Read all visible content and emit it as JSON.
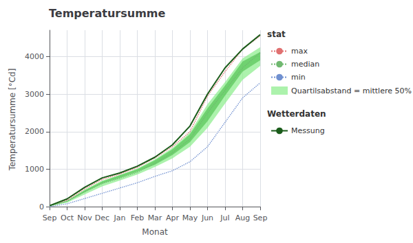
{
  "chart_data": {
    "type": "line",
    "title": "Temperatursumme",
    "xlabel": "Monat",
    "ylabel": "Temperatursumme [°Cd]",
    "categories": [
      "Sep",
      "Oct",
      "Nov",
      "Dec",
      "Jan",
      "Feb",
      "Mar",
      "Apr",
      "May",
      "Jun",
      "Jul",
      "Aug",
      "Sep"
    ],
    "ylim": [
      -50,
      4700
    ],
    "yticks": [
      0,
      1000,
      2000,
      3000,
      4000
    ],
    "grid": true,
    "legend": "right",
    "series": [
      {
        "name": "Quartilsabstand = mittlere 50%",
        "type": "band",
        "color": "#90ee90",
        "lower": [
          12,
          110,
          330,
          545,
          700,
          860,
          1060,
          1290,
          1600,
          2100,
          2750,
          3380,
          3750
        ],
        "upper": [
          28,
          165,
          455,
          700,
          850,
          1020,
          1265,
          1565,
          1980,
          2730,
          3320,
          3950,
          4250
        ]
      },
      {
        "type": "band",
        "color": "#40b840",
        "lower": [
          18,
          138,
          388,
          620,
          770,
          935,
          1120,
          1380,
          1720,
          2280,
          2960,
          3600,
          3900
        ],
        "upper": [
          24,
          160,
          440,
          675,
          840,
          1000,
          1240,
          1530,
          1930,
          2620,
          3230,
          3870,
          4120
        ]
      },
      {
        "name": "max",
        "type": "line",
        "line_style": "dotted",
        "color": "#e07070",
        "values": [
          30,
          180,
          480,
          730,
          870,
          1050,
          1300,
          1600,
          2000,
          2950,
          3600,
          4200,
          4550
        ]
      },
      {
        "name": "median",
        "type": "line",
        "line_style": "dotted",
        "color": "#70b870",
        "values": [
          20,
          150,
          400,
          620,
          760,
          920,
          1160,
          1440,
          1800,
          2500,
          3100,
          3700,
          4100
        ]
      },
      {
        "name": "min",
        "type": "line",
        "line_style": "dotted",
        "color": "#7090d0",
        "values": [
          5,
          80,
          220,
          360,
          500,
          640,
          810,
          960,
          1200,
          1600,
          2250,
          2900,
          3300
        ]
      },
      {
        "name": "Messung",
        "type": "line",
        "line_style": "solid",
        "color": "#1a5c1a",
        "values": [
          30,
          210,
          520,
          770,
          900,
          1080,
          1320,
          1650,
          2150,
          3000,
          3700,
          4200,
          4580
        ]
      }
    ],
    "annotations": [
      {
        "text": "stat",
        "series": [
          "max",
          "median",
          "min",
          "Quartilsabstand = mittlere 50%"
        ]
      },
      {
        "text": "Wetterdaten",
        "series": [
          "Messung"
        ]
      }
    ]
  }
}
